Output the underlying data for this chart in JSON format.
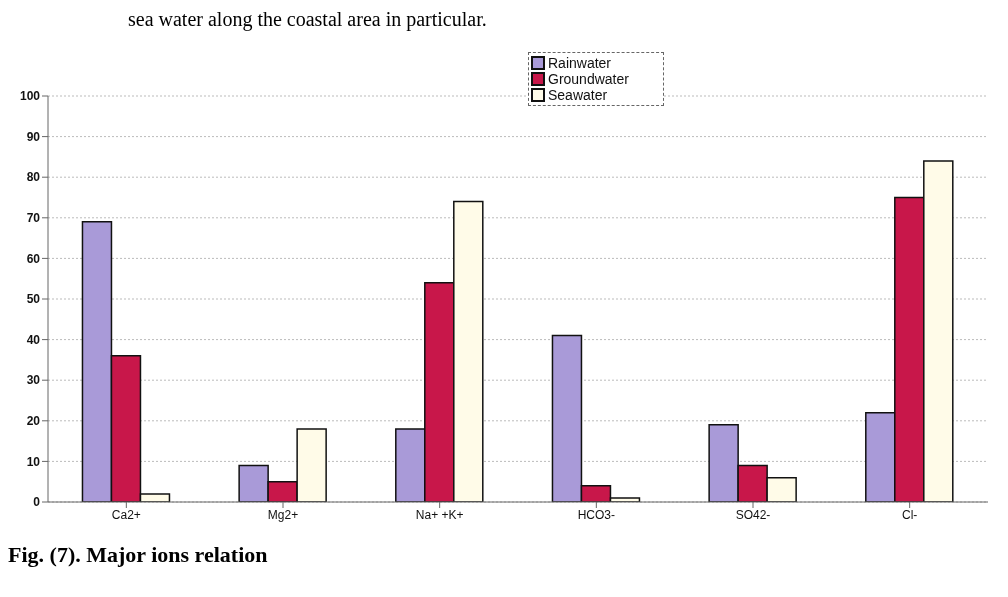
{
  "chart_data": {
    "type": "bar",
    "categories": [
      "Ca2+",
      "Mg2+",
      "Na+ +K+",
      "HCO3-",
      "SO42-",
      "Cl-"
    ],
    "series": [
      {
        "name": "Rainwater",
        "color": "#a99ad8",
        "values": [
          69,
          9,
          18,
          41,
          19,
          22
        ]
      },
      {
        "name": "Groundwater",
        "color": "#c8174a",
        "values": [
          36,
          5,
          54,
          4,
          9,
          75
        ]
      },
      {
        "name": "Seawater",
        "color": "#fffbe8",
        "values": [
          2,
          18,
          74,
          1,
          6,
          84
        ]
      }
    ],
    "ylim": [
      0,
      100
    ],
    "yticks": [
      0,
      10,
      20,
      30,
      40,
      50,
      60,
      70,
      80,
      90,
      100
    ],
    "grid": "y",
    "legend": "top",
    "annotations": [
      "sea water along the coastal area in particular.",
      "Fig. (7). Major ions relation"
    ]
  }
}
